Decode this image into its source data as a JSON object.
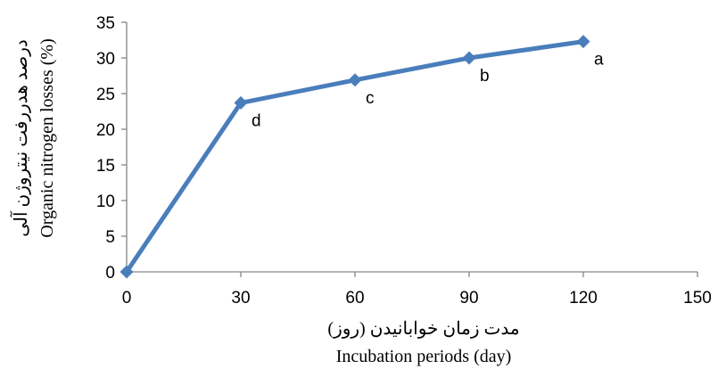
{
  "chart_data": {
    "type": "line",
    "x": [
      0,
      30,
      60,
      90,
      120
    ],
    "series": [
      {
        "values": [
          0,
          23.7,
          26.9,
          30.0,
          32.3
        ],
        "labels": [
          "",
          "d",
          "c",
          "b",
          "a"
        ]
      }
    ],
    "xlabel_fa": "مدت زمان خوابانیدن (روز)",
    "xlabel_en": "Incubation periods (day)",
    "ylabel_fa": "درصد هدررفت نیتروژن آلی",
    "ylabel_en": "Organic nitrogen losses (%)",
    "xlim": [
      0,
      150
    ],
    "ylim": [
      0,
      35
    ],
    "xticks": [
      0,
      30,
      60,
      90,
      120,
      150
    ],
    "yticks": [
      0,
      5,
      10,
      15,
      20,
      25,
      30,
      35
    ],
    "grid": false,
    "legend": "none",
    "colors": {
      "line": "#4a7ebb",
      "axis": "#868686"
    }
  }
}
